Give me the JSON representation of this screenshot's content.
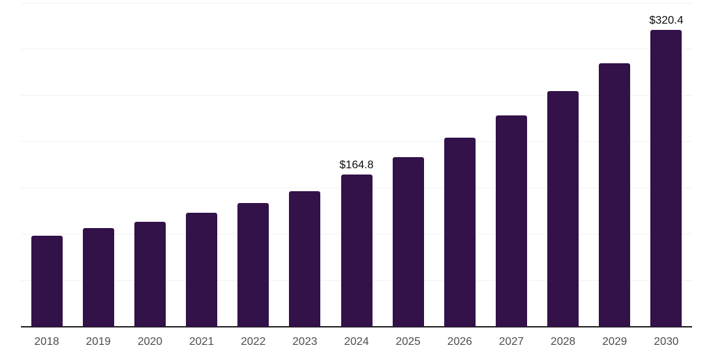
{
  "chart_data": {
    "type": "bar",
    "title": "",
    "xlabel": "",
    "ylabel": "",
    "categories": [
      "2018",
      "2019",
      "2020",
      "2021",
      "2022",
      "2023",
      "2024",
      "2025",
      "2026",
      "2027",
      "2028",
      "2029",
      "2030"
    ],
    "values": [
      98.2,
      107.0,
      113.6,
      123.0,
      133.6,
      146.7,
      164.8,
      183.1,
      204.1,
      228.1,
      254.8,
      285.0,
      320.4
    ],
    "bar_labels": [
      "",
      "",
      "",
      "",
      "",
      "",
      "$164.8",
      "",
      "",
      "",
      "",
      "",
      "$320.4"
    ],
    "ylim": [
      0,
      350
    ],
    "gridline_step": 50,
    "grid": "horizontal-only",
    "y_tick_labels_visible": false,
    "legend": "none",
    "colors": {
      "bar": "#331149",
      "gridline": "#f2f2f2",
      "axis": "#262626",
      "tick_label": "#4d4d4d",
      "data_label": "#0d0d0d",
      "background": "#ffffff"
    }
  }
}
